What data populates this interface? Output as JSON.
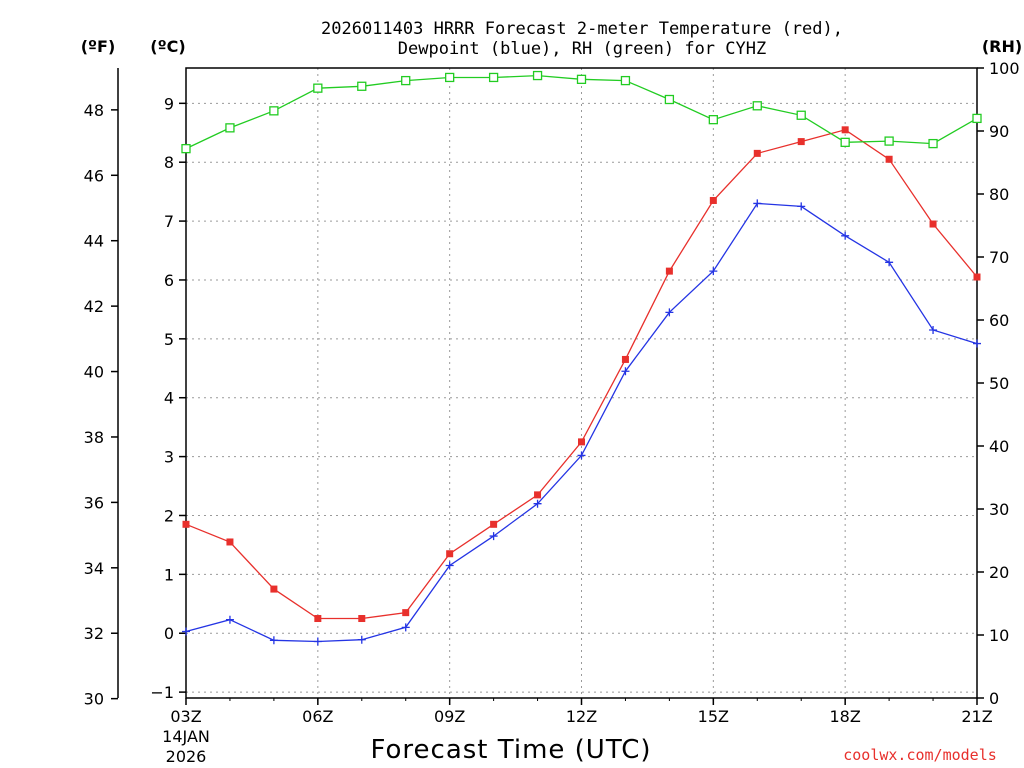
{
  "chart_data": {
    "type": "line",
    "title_line1": "2026011403 HRRR Forecast 2-meter Temperature (red),",
    "title_line2": "Dewpoint (blue), RH (green) for CYHZ",
    "unit_f": "(ºF)",
    "unit_c": "(ºC)",
    "unit_rh": "(RH)",
    "xlabel": "Forecast Time (UTC)",
    "date_label_1": "14JAN",
    "date_label_2": "2026",
    "credit": "coolwx.com/models",
    "x_hours": [
      3,
      4,
      5,
      6,
      7,
      8,
      9,
      10,
      11,
      12,
      13,
      14,
      15,
      16,
      17,
      18,
      19,
      20,
      21
    ],
    "x_ticks": [
      {
        "hour": 3,
        "label": "03Z"
      },
      {
        "hour": 6,
        "label": "06Z"
      },
      {
        "hour": 9,
        "label": "09Z"
      },
      {
        "hour": 12,
        "label": "12Z"
      },
      {
        "hour": 15,
        "label": "15Z"
      },
      {
        "hour": 18,
        "label": "18Z"
      },
      {
        "hour": 21,
        "label": "21Z"
      }
    ],
    "xlim": [
      3,
      21
    ],
    "ylim_c": [
      -1.1,
      9.6
    ],
    "ylim_f": [
      30.02,
      49.28
    ],
    "ylim_rh": [
      0,
      100
    ],
    "yticks_c": [
      "−1",
      "0",
      "1",
      "2",
      "3",
      "4",
      "5",
      "6",
      "7",
      "8",
      "9"
    ],
    "yticks_c_values": [
      -1,
      0,
      1,
      2,
      3,
      4,
      5,
      6,
      7,
      8,
      9
    ],
    "yticks_f": [
      "30",
      "32",
      "34",
      "36",
      "38",
      "40",
      "42",
      "44",
      "46",
      "48"
    ],
    "yticks_f_values": [
      30,
      32,
      34,
      36,
      38,
      40,
      42,
      44,
      46,
      48
    ],
    "yticks_rh": [
      "0",
      "10",
      "20",
      "30",
      "40",
      "50",
      "60",
      "70",
      "80",
      "90",
      "100"
    ],
    "yticks_rh_values": [
      0,
      10,
      20,
      30,
      40,
      50,
      60,
      70,
      80,
      90,
      100
    ],
    "series": [
      {
        "name": "Temperature",
        "axis": "c",
        "color": "#e8302c",
        "marker": "filled-square",
        "values": [
          1.85,
          1.55,
          0.75,
          0.25,
          0.25,
          0.35,
          1.35,
          1.85,
          2.35,
          3.25,
          4.65,
          6.15,
          7.35,
          8.15,
          8.35,
          8.55,
          8.05,
          6.95,
          6.05
        ]
      },
      {
        "name": "Dewpoint",
        "axis": "c",
        "color": "#2434e4",
        "marker": "plus",
        "values": [
          0.03,
          0.23,
          -0.12,
          -0.14,
          -0.11,
          0.1,
          1.15,
          1.65,
          2.2,
          3.02,
          4.45,
          5.45,
          6.15,
          7.3,
          7.25,
          6.75,
          6.3,
          5.15,
          4.92
        ]
      },
      {
        "name": "RH",
        "axis": "rh",
        "color": "#22cc22",
        "marker": "open-square",
        "values": [
          87.2,
          90.5,
          93.2,
          96.8,
          97.1,
          98.0,
          98.5,
          98.5,
          98.8,
          98.2,
          98.0,
          95.0,
          91.8,
          94.0,
          92.5,
          88.2,
          88.4,
          88.0,
          92.0
        ]
      }
    ]
  }
}
